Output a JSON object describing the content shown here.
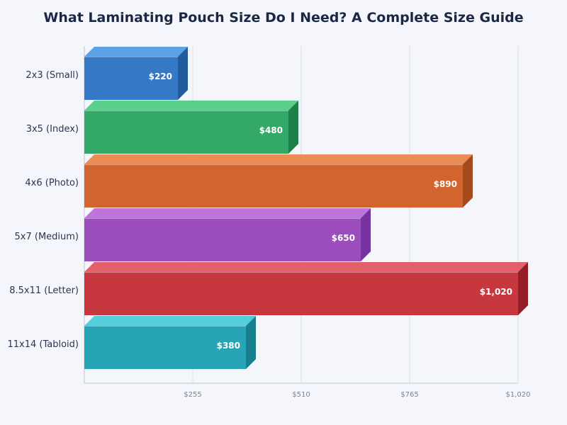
{
  "title": "What Laminating Pouch Size Do I Need? A Complete Size Guide",
  "chart_data": {
    "type": "bar",
    "orientation": "horizontal",
    "style": "3d",
    "title": "What Laminating Pouch Size Do I Need? A Complete Size Guide",
    "categories": [
      "2x3 (Small)",
      "3x5 (Index)",
      "4x6 (Photo)",
      "5x7 (Medium)",
      "8.5x11 (Letter)",
      "11x14 (Tabloid)"
    ],
    "values": [
      220,
      480,
      890,
      650,
      1020,
      380
    ],
    "value_labels": [
      "$220",
      "$480",
      "$890",
      "$650",
      "$1,020",
      "$380"
    ],
    "xlim": [
      0,
      1020
    ],
    "xticks": [
      255,
      510,
      765,
      1020
    ],
    "xtick_labels": [
      "$255",
      "$510",
      "$765",
      "$1,020"
    ],
    "grid": true,
    "legend": "none",
    "colors": [
      {
        "front": "#3578c6",
        "top": "#5ba3e6",
        "side": "#225b9e"
      },
      {
        "front": "#34a867",
        "top": "#5bd08a",
        "side": "#1f7f49"
      },
      {
        "front": "#d2652d",
        "top": "#ec8c56",
        "side": "#a44a1c"
      },
      {
        "front": "#9a4dbb",
        "top": "#bd74dc",
        "side": "#7532a0"
      },
      {
        "front": "#c6373f",
        "top": "#e2606a",
        "side": "#951e26"
      },
      {
        "front": "#27a5b7",
        "top": "#52cfdc",
        "side": "#177f8e"
      }
    ],
    "background": "#f5f6fb"
  }
}
